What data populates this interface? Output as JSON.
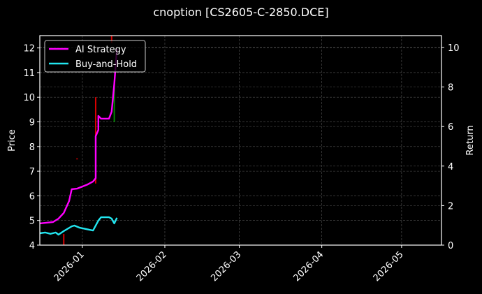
{
  "chart_data": {
    "type": "line",
    "title": "cnoption [CS2605-C-2850.DCE]",
    "xlabel": "",
    "ylabel_left": "Price",
    "ylabel_right": "Return",
    "x_ticks": [
      "2026-01",
      "2026-02",
      "2026-03",
      "2026-04",
      "2026-05"
    ],
    "y_left_ticks": [
      4,
      5,
      6,
      7,
      8,
      9,
      10,
      11,
      12
    ],
    "y_right_ticks": [
      0,
      2,
      4,
      6,
      8,
      10
    ],
    "ylim_left": [
      4.0,
      12.5
    ],
    "ylim_right": [
      0,
      10.6
    ],
    "xlim": [
      "2025-12-16",
      "2026-05-16"
    ],
    "grid": true,
    "legend_position": "upper left",
    "background": "#000000",
    "series": [
      {
        "name": "AI Strategy",
        "axis": "right",
        "color": "#ff00ff",
        "x": [
          "2025-12-16",
          "2025-12-21",
          "2025-12-23",
          "2025-12-25",
          "2025-12-27",
          "2025-12-28",
          "2025-12-30",
          "2026-01-03",
          "2026-01-05",
          "2026-01-06",
          "2026-01-06",
          "2026-01-07",
          "2026-01-07",
          "2026-01-08",
          "2026-01-09",
          "2026-01-11",
          "2026-01-12",
          "2026-01-13",
          "2026-01-14"
        ],
        "values": [
          1.1,
          1.17,
          1.34,
          1.63,
          2.23,
          2.83,
          2.86,
          3.07,
          3.22,
          3.39,
          5.51,
          5.83,
          6.54,
          6.4,
          6.4,
          6.4,
          6.75,
          8.16,
          9.93
        ]
      },
      {
        "name": "Buy-and-Hold",
        "axis": "right",
        "color": "#22e6f0",
        "x": [
          "2025-12-16",
          "2025-12-18",
          "2025-12-20",
          "2025-12-22",
          "2025-12-23",
          "2025-12-25",
          "2025-12-28",
          "2025-12-29",
          "2025-12-31",
          "2026-01-05",
          "2026-01-07",
          "2026-01-08",
          "2026-01-11",
          "2026-01-12",
          "2026-01-13",
          "2026-01-14"
        ],
        "values": [
          0.6,
          0.64,
          0.57,
          0.64,
          0.53,
          0.71,
          0.95,
          0.99,
          0.88,
          0.74,
          1.24,
          1.41,
          1.41,
          1.34,
          1.1,
          1.38
        ]
      }
    ],
    "candles": [
      {
        "date": "2025-12-25",
        "low": 4.0,
        "high": 4.45,
        "color": "#ff0000"
      },
      {
        "date": "2025-12-30",
        "low": 7.5,
        "high": 7.5,
        "color": "#ff0000"
      },
      {
        "date": "2026-01-06",
        "low": 6.5,
        "high": 10.0,
        "color": "#ff0000"
      },
      {
        "date": "2026-01-12",
        "low": 12.2,
        "high": 12.5,
        "color": "#ff0000"
      },
      {
        "date": "2026-01-13",
        "low": 9.0,
        "high": 10.5,
        "color": "#00a000"
      }
    ]
  },
  "legend": {
    "items": [
      {
        "label": "AI Strategy",
        "color": "#ff00ff"
      },
      {
        "label": "Buy-and-Hold",
        "color": "#22e6f0"
      }
    ]
  }
}
